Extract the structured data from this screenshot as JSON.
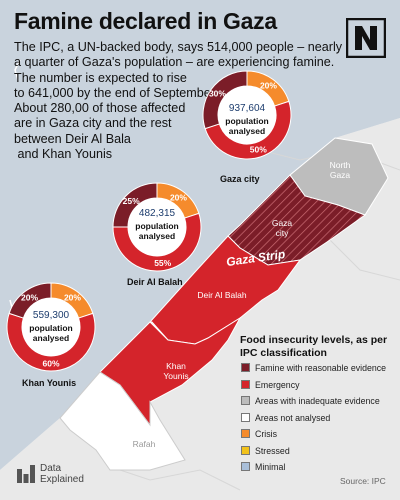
{
  "title": "Famine declared in Gaza",
  "intro_lines": [
    "The IPC, a UN-backed body, says 514,000 people – nearly",
    "a quarter of Gaza's population – are experiencing famine.",
    "The number is expected to rise",
    "to 641,000 by the end of September.",
    "About 280,00 of those affected",
    "are in Gaza city and the rest",
    "between Deir Al Bala",
    " and Khan Younis"
  ],
  "logo": {
    "icon": "n-logo-icon",
    "color": "#111111"
  },
  "colors": {
    "famine": "#7b1d28",
    "emergency": "#d4242b",
    "inadequate": "#bdbdbd",
    "not_analysed": "#ffffff",
    "crisis": "#f58b2c",
    "stressed": "#f2c21b",
    "minimal": "#a9bfd9",
    "sea": "#c9d3dd"
  },
  "chart_data": [
    {
      "type": "pie",
      "region": "Gaza city",
      "population_label": "937,604",
      "center_text": [
        "population",
        "analysed"
      ],
      "slices": [
        {
          "category": "Famine with reasonable evidence",
          "value": 30,
          "label": "30%"
        },
        {
          "category": "Crisis",
          "value": 20,
          "label": "20%"
        },
        {
          "category": "Emergency",
          "value": 50,
          "label": "50%"
        }
      ]
    },
    {
      "type": "pie",
      "region": "Deir Al Balah",
      "population_label": "482,315",
      "center_text": [
        "population",
        "analysed"
      ],
      "slices": [
        {
          "category": "Famine with reasonable evidence",
          "value": 25,
          "label": "25%"
        },
        {
          "category": "Crisis",
          "value": 20,
          "label": "20%"
        },
        {
          "category": "Emergency",
          "value": 55,
          "label": "55%"
        }
      ]
    },
    {
      "type": "pie",
      "region": "Khan Younis",
      "population_label": "559,300",
      "center_text": [
        "population",
        "analysed"
      ],
      "slices": [
        {
          "category": "Famine with reasonable evidence",
          "value": 20,
          "label": "20%"
        },
        {
          "category": "Crisis",
          "value": 20,
          "label": "20%"
        },
        {
          "category": "Emergency",
          "value": 60,
          "label": "60%"
        }
      ]
    }
  ],
  "map": {
    "strip_label": "Gaza Strip",
    "regions": {
      "north_gaza": "North\nGaza",
      "gaza_city": "Gaza\ncity",
      "deir_al_balah": "Deir Al Balah",
      "khan_younis": "Khan\nYounis",
      "rafah": "Rafah"
    }
  },
  "legend": {
    "title": "Food insecurity levels, as per IPC classification",
    "items": [
      {
        "label": "Famine with reasonable evidence",
        "color": "#7b1d28"
      },
      {
        "label": "Emergency",
        "color": "#d4242b"
      },
      {
        "label": "Areas with inadequate evidence",
        "color": "#bdbdbd"
      },
      {
        "label": "Areas not analysed",
        "color": "#ffffff"
      },
      {
        "label": "Crisis",
        "color": "#f58b2c"
      },
      {
        "label": "Stressed",
        "color": "#f2c21b"
      },
      {
        "label": "Minimal",
        "color": "#a9bfd9"
      }
    ]
  },
  "brand": {
    "line1": "Data",
    "line2": "Explained",
    "icon": "bar-chart-icon"
  },
  "source": "Source: IPC"
}
